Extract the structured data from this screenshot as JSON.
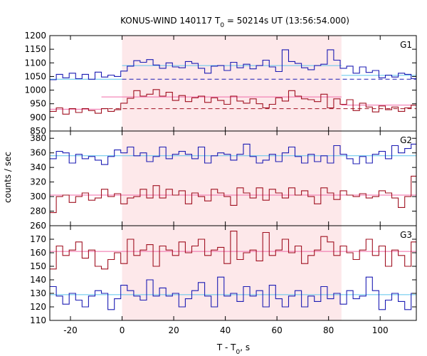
{
  "chart_data": {
    "type": "line",
    "title_parts": [
      "KONUS-WIND 140117 T",
      "0",
      " = 50214s UT (13:56:54.000)"
    ],
    "xlabel_parts": [
      "T - T",
      "0",
      ", s"
    ],
    "ylabel": "counts / sec",
    "xlim": [
      -28,
      114
    ],
    "x_ticks": [
      -20,
      0,
      20,
      40,
      60,
      80,
      100
    ],
    "highlight": {
      "x0": 0,
      "x1": 85,
      "color": "#fde8ea"
    },
    "colors": {
      "blue": "#1c1cb4",
      "red": "#a01020",
      "cyan": "#5bc4ec",
      "pink": "#f06aa8"
    },
    "bin_edges": [
      -28,
      -25.5,
      -23,
      -20.5,
      -18,
      -15.5,
      -13,
      -10.5,
      -8,
      -5.5,
      -3,
      -0.5,
      2,
      4.5,
      7,
      9.5,
      12,
      14.5,
      17,
      19.5,
      22,
      24.5,
      27,
      29.5,
      32,
      34.5,
      37,
      39.5,
      42,
      44.5,
      47,
      49.5,
      52,
      54.5,
      57,
      59.5,
      62,
      64.5,
      67,
      69.5,
      72,
      74.5,
      77,
      79.5,
      82,
      84.5,
      87,
      89.5,
      92,
      94.5,
      97,
      99.5,
      102,
      104.5,
      107,
      109.5,
      112,
      114
    ],
    "panels": [
      {
        "name": "G1",
        "ylim": [
          850,
          1200
        ],
        "y_ticks": [
          850,
          900,
          950,
          1000,
          1050,
          1100,
          1150,
          1200
        ],
        "series": [
          {
            "color": "blue",
            "values": [
              1038,
              1058,
              1045,
              1062,
              1042,
              1058,
              1040,
              1066,
              1048,
              1055,
              1050,
              1070,
              1088,
              1108,
              1102,
              1112,
              1092,
              1080,
              1100,
              1085,
              1082,
              1105,
              1098,
              1080,
              1062,
              1088,
              1090,
              1072,
              1102,
              1082,
              1095,
              1078,
              1090,
              1110,
              1085,
              1068,
              1148,
              1105,
              1098,
              1082,
              1075,
              1090,
              1095,
              1148,
              1110,
              1080,
              1088,
              1062,
              1085,
              1065,
              1072,
              1045,
              1055,
              1048,
              1062,
              1058,
              1042,
              1065
            ]
          },
          {
            "color": "red",
            "values": [
              922,
              935,
              912,
              932,
              918,
              932,
              925,
              915,
              932,
              922,
              928,
              952,
              970,
              998,
              978,
              985,
              1002,
              978,
              992,
              962,
              980,
              958,
              972,
              978,
              955,
              972,
              962,
              948,
              978,
              960,
              952,
              968,
              950,
              935,
              948,
              972,
              960,
              998,
              978,
              968,
              965,
              958,
              985,
              935,
              968,
              948,
              965,
              925,
              952,
              938,
              920,
              942,
              928,
              938,
              922,
              935,
              945,
              940
            ]
          }
        ],
        "bg_refs": [
          {
            "color": "cyan",
            "y": 1040,
            "x0": -28,
            "x1": 0
          },
          {
            "color": "blue",
            "y": 1040,
            "x0": 0,
            "x1": 114,
            "dashed": true
          },
          {
            "color": "pink",
            "y": 930,
            "x0": -28,
            "x1": -8
          },
          {
            "color": "red",
            "y": 932,
            "x0": -8,
            "x1": 114,
            "dashed": true
          }
        ],
        "mean_refs": [
          {
            "color": "cyan",
            "y": 1090,
            "x0": 0,
            "x1": 85
          },
          {
            "color": "cyan",
            "y": 1054,
            "x0": 85,
            "x1": 114
          },
          {
            "color": "pink",
            "y": 975,
            "x0": -8,
            "x1": 85
          },
          {
            "color": "pink",
            "y": 945,
            "x0": 85,
            "x1": 114
          }
        ]
      },
      {
        "name": "G2",
        "ylim": [
          260,
          390
        ],
        "y_ticks": [
          260,
          280,
          300,
          320,
          340,
          360,
          380
        ],
        "series": [
          {
            "color": "blue",
            "values": [
              352,
              362,
              360,
              346,
              358,
              352,
              355,
              350,
              344,
              355,
              364,
              360,
              368,
              356,
              360,
              348,
              355,
              368,
              352,
              358,
              362,
              358,
              352,
              368,
              346,
              356,
              360,
              358,
              350,
              358,
              372,
              355,
              346,
              350,
              358,
              348,
              360,
              368,
              355,
              346,
              358,
              348,
              356,
              346,
              370,
              358,
              352,
              345,
              355,
              346,
              358,
              362,
              352,
              370,
              360,
              366,
              372,
              358
            ]
          },
          {
            "color": "red",
            "values": [
              278,
              300,
              302,
              292,
              300,
              305,
              295,
              298,
              310,
              300,
              304,
              290,
              298,
              300,
              310,
              298,
              315,
              298,
              310,
              302,
              308,
              290,
              305,
              300,
              294,
              310,
              305,
              300,
              288,
              312,
              305,
              298,
              312,
              295,
              310,
              305,
              298,
              312,
              302,
              308,
              300,
              290,
              312,
              305,
              296,
              308,
              302,
              300,
              304,
              298,
              300,
              308,
              305,
              298,
              285,
              300,
              328,
              300
            ]
          }
        ],
        "bg_refs": [
          {
            "color": "cyan",
            "y": 356,
            "x0": -28,
            "x1": 114
          },
          {
            "color": "pink",
            "y": 302,
            "x0": -28,
            "x1": 114
          }
        ],
        "mean_refs": []
      },
      {
        "name": "G3",
        "ylim": [
          110,
          180
        ],
        "y_ticks": [
          110,
          120,
          130,
          140,
          150,
          160,
          170
        ],
        "series": [
          {
            "color": "blue",
            "values": [
              135,
              128,
              122,
              130,
              125,
              120,
              128,
              132,
              130,
              118,
              126,
              136,
              132,
              128,
              125,
              140,
              128,
              134,
              128,
              130,
              120,
              126,
              132,
              138,
              128,
              120,
              142,
              128,
              130,
              124,
              135,
              128,
              132,
              120,
              136,
              126,
              120,
              128,
              132,
              120,
              128,
              124,
              135,
              126,
              130,
              122,
              132,
              126,
              128,
              142,
              132,
              118,
              125,
              130,
              124,
              118,
              130,
              124
            ]
          },
          {
            "color": "red",
            "values": [
              148,
              165,
              158,
              162,
              168,
              156,
              162,
              150,
              148,
              155,
              160,
              152,
              170,
              158,
              162,
              166,
              150,
              165,
              162,
              158,
              168,
              160,
              165,
              170,
              158,
              162,
              164,
              152,
              176,
              155,
              160,
              162,
              154,
              175,
              158,
              162,
              170,
              160,
              165,
              152,
              158,
              162,
              172,
              168,
              158,
              165,
              160,
              155,
              162,
              170,
              158,
              165,
              150,
              162,
              158,
              150,
              168,
              162
            ]
          }
        ],
        "bg_refs": [
          {
            "color": "cyan",
            "y": 129,
            "x0": -28,
            "x1": 114
          },
          {
            "color": "pink",
            "y": 161,
            "x0": -28,
            "x1": 114
          }
        ],
        "mean_refs": []
      }
    ]
  }
}
